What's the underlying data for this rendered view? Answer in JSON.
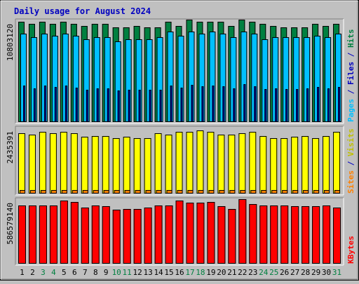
{
  "chart_data": {
    "type": "bar",
    "title": "Daily usage for August 2024",
    "x": [
      "1",
      "2",
      "3",
      "4",
      "5",
      "6",
      "7",
      "8",
      "9",
      "10",
      "11",
      "12",
      "13",
      "14",
      "15",
      "16",
      "17",
      "18",
      "19",
      "20",
      "21",
      "22",
      "23",
      "24",
      "25",
      "26",
      "27",
      "28",
      "29",
      "30",
      "31"
    ],
    "weekend_days": [
      3,
      4,
      10,
      11,
      17,
      18,
      24,
      25,
      31
    ],
    "panels": [
      {
        "name": "hits-files-pages",
        "ylabel_parts": [
          {
            "text": "Pages",
            "color": "#00C0FF"
          },
          {
            "text": " / ",
            "color": "#0000C0"
          },
          {
            "text": "Files",
            "color": "#0000C0"
          },
          {
            "text": " / ",
            "color": "#0000C0"
          },
          {
            "text": "Hits",
            "color": "#008040"
          }
        ],
        "ytick": "10803120",
        "ymax": 10803120,
        "series": [
          {
            "name": "Hits",
            "color": "#008040",
            "values": [
              10803120,
              10591005,
              10803120,
              10591005,
              10803120,
              10591005,
              10379000,
              10591005,
              10591005,
              10166000,
              10166000,
              10379000,
              10166000,
              10166000,
              10803120,
              10379000,
              11015000,
              10803120,
              10803120,
              10803120,
              10379000,
              11015000,
              10803120,
              10591005,
              10379000,
              10166000,
              10166000,
              10166000,
              10591005,
              10379000,
              10591005
            ]
          },
          {
            "name": "Files",
            "color": "#00C0FF",
            "values": [
              9531000,
              9107000,
              9531000,
              9319000,
              9531000,
              9319000,
              8895000,
              9107000,
              9107000,
              8683000,
              8895000,
              8895000,
              8895000,
              9107000,
              9742000,
              9319000,
              9742000,
              9531000,
              9742000,
              9531000,
              9107000,
              9742000,
              9531000,
              8895000,
              9107000,
              9107000,
              9107000,
              9107000,
              9319000,
              9107000,
              9531000
            ]
          },
          {
            "name": "Pages",
            "color": "#0000C0",
            "values": [
              3900000,
              3600000,
              3900000,
              3750000,
              3950000,
              3700000,
              3500000,
              3600000,
              3650000,
              3400000,
              3450000,
              3500000,
              3450000,
              3500000,
              3900000,
              3700000,
              4000000,
              3850000,
              3950000,
              3850000,
              3600000,
              4050000,
              3850000,
              3550000,
              3600000,
              3550000,
              3550000,
              3600000,
              3750000,
              3600000,
              3800000
            ]
          }
        ]
      },
      {
        "name": "visits-sites",
        "ylabel_parts": [
          {
            "text": "Sites",
            "color": "#FF8000"
          },
          {
            "text": " / ",
            "color": "#0000C0"
          },
          {
            "text": "Visits",
            "color": "#C0C000"
          }
        ],
        "ytick": "2435391",
        "ymax": 2435391,
        "series": [
          {
            "name": "Visits",
            "color": "#FFFF00",
            "values": [
              2272000,
              2226000,
              2318000,
              2272000,
              2318000,
              2272000,
              2134000,
              2180000,
              2180000,
              2088000,
              2134000,
              2088000,
              2088000,
              2272000,
              2226000,
              2318000,
              2318000,
              2388000,
              2318000,
              2226000,
              2226000,
              2272000,
              2318000,
              2180000,
              2088000,
              2088000,
              2134000,
              2180000,
              2088000,
              2180000,
              2318000
            ]
          },
          {
            "name": "Sites",
            "color": "#FF8000",
            "values": [
              110000,
              108000,
              110000,
              110000,
              110000,
              110000,
              108000,
              108000,
              108000,
              106000,
              106000,
              106000,
              106000,
              108000,
              110000,
              110000,
              112000,
              112000,
              110000,
              110000,
              108000,
              112000,
              110000,
              108000,
              108000,
              106000,
              106000,
              108000,
              108000,
              108000,
              110000
            ]
          }
        ]
      },
      {
        "name": "kbytes",
        "ylabel_parts": [
          {
            "text": "KBytes",
            "color": "#FF0000"
          }
        ],
        "ytick": "586579140",
        "ymax": 586579140,
        "series": [
          {
            "name": "KBytes",
            "color": "#FF0000",
            "values": [
              543000000,
              543000000,
              543000000,
              543000000,
              586000000,
              573000000,
              521000000,
              543000000,
              532000000,
              499000000,
              510000000,
              510000000,
              521000000,
              543000000,
              543000000,
              586579140,
              565000000,
              565000000,
              573000000,
              532000000,
              510000000,
              597000000,
              554000000,
              543000000,
              543000000,
              543000000,
              532000000,
              532000000,
              532000000,
              543000000,
              521000000
            ]
          }
        ]
      }
    ],
    "colors": {
      "background": "#C0C0C0",
      "title": "#0000C0",
      "plot_background": "#C0C0C0",
      "weekday_label": "#000000",
      "weekend_label": "#008040"
    }
  }
}
